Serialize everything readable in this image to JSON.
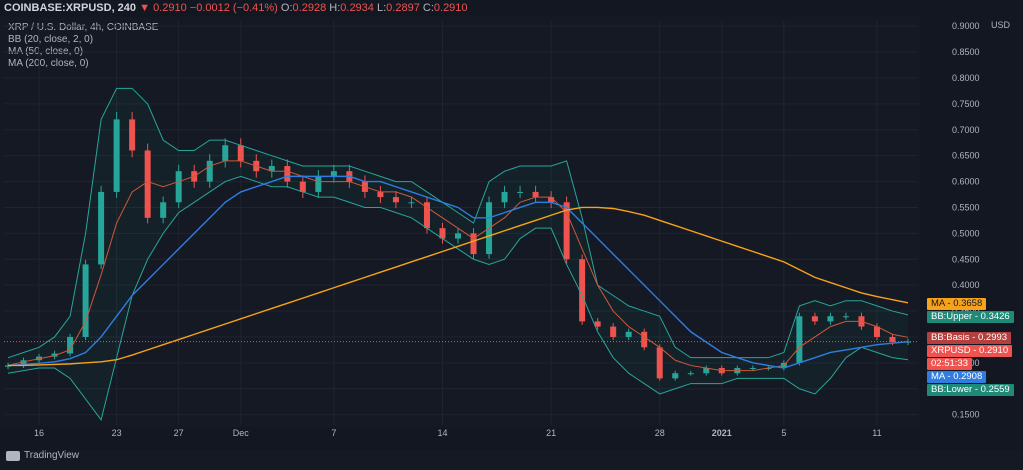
{
  "header": {
    "symbol": "COINBASE:XRPUSD, 240",
    "arrow": "▼",
    "last": "0.2910",
    "change": "−0.0012 (−0.41%)",
    "o_label": "O:",
    "o": "0.2928",
    "h_label": "H:",
    "h": "0.2934",
    "l_label": "L:",
    "l": "0.2897",
    "c_label": "C:",
    "c": "0.2910"
  },
  "indicators": [
    "XRP / U.S. Dollar, 4h, COINBASE",
    "BB (20, close, 2, 0)",
    "MA (50, close, 0)",
    "MA (200, close, 0)"
  ],
  "logo_text": "TradingView",
  "tags": {
    "ma200": {
      "label": "MA",
      "value": "0.3658",
      "color": "#f7a21b"
    },
    "bb_upper": {
      "label": "BB:Upper",
      "value": "0.3426",
      "color": "#1f8a78"
    },
    "bb_basis": {
      "label": "BB:Basis",
      "value": "0.2993",
      "color": "#b33f3f"
    },
    "price": {
      "label": "XRPUSD",
      "value": "0.2910",
      "color": "#ef5350"
    },
    "countdown": {
      "value": "02:51:33",
      "color": "#ef5350"
    },
    "ma50": {
      "label": "MA",
      "value": "0.2908",
      "color": "#2f7de1"
    },
    "bb_lower": {
      "label": "BB:Lower",
      "value": "0.2559",
      "color": "#1f8a78"
    }
  },
  "chart_data": {
    "type": "line",
    "title": "XRP / U.S. Dollar, 4h, COINBASE",
    "ylabel": "USD",
    "ylim": [
      0.13,
      0.91
    ],
    "y_ticks": [
      "0.9000",
      "0.8500",
      "0.8000",
      "0.7500",
      "0.7000",
      "0.6500",
      "0.6000",
      "0.5500",
      "0.5000",
      "0.4500",
      "0.4000",
      "0.3500",
      "0.3000",
      "0.2500",
      "0.2000",
      "0.1500"
    ],
    "x_ticks": [
      "16",
      "23",
      "27",
      "Dec",
      "7",
      "14",
      "21",
      "28",
      "2021",
      "5",
      "11"
    ],
    "grid": true,
    "colors": {
      "up": "#26a69a",
      "down": "#ef5350",
      "bb": "#26a69a",
      "bb_basis": "#d0573a",
      "ma50": "#2f7de1",
      "ma200": "#f7a21b"
    },
    "x": [
      "Nov 11",
      "Nov 14",
      "Nov 16",
      "Nov 18",
      "Nov 20",
      "Nov 21",
      "Nov 22",
      "Nov 23",
      "Nov 24",
      "Nov 25",
      "Nov 26",
      "Nov 27",
      "Nov 28",
      "Nov 29",
      "Nov 30",
      "Dec 1",
      "Dec 2",
      "Dec 3",
      "Dec 4",
      "Dec 5",
      "Dec 6",
      "Dec 7",
      "Dec 8",
      "Dec 9",
      "Dec 10",
      "Dec 11",
      "Dec 12",
      "Dec 13",
      "Dec 14",
      "Dec 15",
      "Dec 16",
      "Dec 17",
      "Dec 18",
      "Dec 19",
      "Dec 20",
      "Dec 21",
      "Dec 22",
      "Dec 23",
      "Dec 24",
      "Dec 25",
      "Dec 26",
      "Dec 27",
      "Dec 28",
      "Dec 29",
      "Dec 30",
      "Dec 31",
      "Jan 1",
      "Jan 2",
      "Jan 3",
      "Jan 4",
      "Jan 5",
      "Jan 6",
      "Jan 7",
      "Jan 8",
      "Jan 9",
      "Jan 10",
      "Jan 11",
      "Jan 12",
      "Jan 13"
    ],
    "series": [
      {
        "name": "XRPUSD",
        "values": [
          0.245,
          0.255,
          0.262,
          0.268,
          0.3,
          0.44,
          0.58,
          0.72,
          0.66,
          0.53,
          0.56,
          0.62,
          0.6,
          0.64,
          0.67,
          0.64,
          0.62,
          0.63,
          0.6,
          0.58,
          0.61,
          0.62,
          0.6,
          0.58,
          0.57,
          0.56,
          0.56,
          0.51,
          0.49,
          0.5,
          0.46,
          0.56,
          0.58,
          0.58,
          0.57,
          0.56,
          0.45,
          0.33,
          0.32,
          0.3,
          0.31,
          0.28,
          0.22,
          0.23,
          0.23,
          0.24,
          0.23,
          0.24,
          0.24,
          0.24,
          0.25,
          0.34,
          0.33,
          0.34,
          0.34,
          0.32,
          0.3,
          0.29,
          0.291
        ]
      },
      {
        "name": "BB Upper",
        "values": [
          0.26,
          0.27,
          0.28,
          0.3,
          0.34,
          0.5,
          0.72,
          0.78,
          0.78,
          0.75,
          0.68,
          0.66,
          0.66,
          0.68,
          0.68,
          0.67,
          0.66,
          0.65,
          0.64,
          0.63,
          0.63,
          0.63,
          0.63,
          0.62,
          0.61,
          0.6,
          0.6,
          0.58,
          0.56,
          0.54,
          0.52,
          0.6,
          0.62,
          0.63,
          0.63,
          0.63,
          0.64,
          0.53,
          0.4,
          0.38,
          0.36,
          0.35,
          0.34,
          0.28,
          0.26,
          0.26,
          0.26,
          0.26,
          0.26,
          0.26,
          0.27,
          0.36,
          0.37,
          0.36,
          0.37,
          0.37,
          0.36,
          0.35,
          0.3426
        ]
      },
      {
        "name": "BB Basis",
        "values": [
          0.245,
          0.252,
          0.258,
          0.264,
          0.275,
          0.33,
          0.42,
          0.52,
          0.58,
          0.6,
          0.59,
          0.6,
          0.61,
          0.63,
          0.64,
          0.64,
          0.63,
          0.62,
          0.62,
          0.61,
          0.6,
          0.6,
          0.6,
          0.59,
          0.58,
          0.58,
          0.57,
          0.55,
          0.53,
          0.51,
          0.49,
          0.51,
          0.53,
          0.56,
          0.57,
          0.57,
          0.54,
          0.47,
          0.4,
          0.35,
          0.32,
          0.3,
          0.28,
          0.255,
          0.245,
          0.24,
          0.235,
          0.235,
          0.235,
          0.24,
          0.245,
          0.28,
          0.3,
          0.32,
          0.33,
          0.33,
          0.32,
          0.305,
          0.2993
        ]
      },
      {
        "name": "BB Lower",
        "values": [
          0.23,
          0.235,
          0.24,
          0.24,
          0.22,
          0.18,
          0.14,
          0.26,
          0.38,
          0.45,
          0.5,
          0.54,
          0.56,
          0.58,
          0.6,
          0.61,
          0.6,
          0.59,
          0.59,
          0.58,
          0.57,
          0.57,
          0.56,
          0.55,
          0.55,
          0.54,
          0.53,
          0.51,
          0.49,
          0.47,
          0.45,
          0.44,
          0.45,
          0.49,
          0.51,
          0.51,
          0.44,
          0.38,
          0.31,
          0.26,
          0.23,
          0.21,
          0.19,
          0.2,
          0.21,
          0.21,
          0.21,
          0.22,
          0.22,
          0.22,
          0.22,
          0.2,
          0.19,
          0.22,
          0.26,
          0.28,
          0.27,
          0.26,
          0.2559
        ]
      },
      {
        "name": "MA 50",
        "values": [
          0.245,
          0.247,
          0.249,
          0.252,
          0.258,
          0.27,
          0.3,
          0.34,
          0.38,
          0.41,
          0.44,
          0.47,
          0.5,
          0.53,
          0.56,
          0.58,
          0.59,
          0.6,
          0.61,
          0.61,
          0.61,
          0.61,
          0.61,
          0.6,
          0.6,
          0.59,
          0.58,
          0.57,
          0.56,
          0.55,
          0.53,
          0.53,
          0.54,
          0.55,
          0.56,
          0.56,
          0.55,
          0.52,
          0.49,
          0.46,
          0.43,
          0.4,
          0.37,
          0.34,
          0.31,
          0.29,
          0.27,
          0.26,
          0.25,
          0.245,
          0.24,
          0.25,
          0.26,
          0.27,
          0.275,
          0.28,
          0.285,
          0.288,
          0.2908
        ]
      },
      {
        "name": "MA 200",
        "values": [
          0.245,
          0.245,
          0.246,
          0.247,
          0.248,
          0.25,
          0.252,
          0.256,
          0.265,
          0.275,
          0.285,
          0.295,
          0.305,
          0.315,
          0.325,
          0.335,
          0.345,
          0.355,
          0.365,
          0.375,
          0.385,
          0.395,
          0.405,
          0.415,
          0.425,
          0.435,
          0.445,
          0.455,
          0.465,
          0.475,
          0.485,
          0.495,
          0.505,
          0.515,
          0.525,
          0.535,
          0.545,
          0.55,
          0.55,
          0.548,
          0.542,
          0.535,
          0.525,
          0.515,
          0.505,
          0.495,
          0.485,
          0.475,
          0.465,
          0.455,
          0.445,
          0.43,
          0.415,
          0.405,
          0.395,
          0.385,
          0.378,
          0.372,
          0.3658
        ]
      }
    ]
  }
}
